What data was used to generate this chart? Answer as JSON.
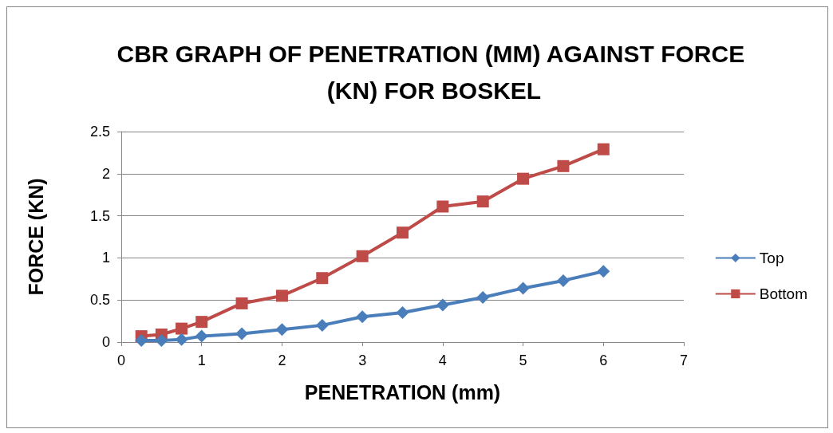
{
  "chart_data": {
    "type": "line",
    "title": "CBR GRAPH OF PENETRATION (MM) AGAINST FORCE (KN) FOR BOSKEL",
    "xlabel": "PENETRATION (mm)",
    "ylabel": "FORCE (KN)",
    "x": [
      0.25,
      0.5,
      0.75,
      1,
      1.5,
      2,
      2.5,
      3,
      3.5,
      4,
      4.5,
      5,
      5.5,
      6
    ],
    "series": [
      {
        "name": "Top",
        "color": "#4a7ebb",
        "marker": "diamond",
        "values": [
          0.02,
          0.02,
          0.03,
          0.07,
          0.1,
          0.15,
          0.2,
          0.3,
          0.35,
          0.44,
          0.53,
          0.64,
          0.73,
          0.84
        ]
      },
      {
        "name": "Bottom",
        "color": "#be4b48",
        "marker": "square",
        "values": [
          0.07,
          0.09,
          0.16,
          0.24,
          0.46,
          0.55,
          0.76,
          1.02,
          1.3,
          1.61,
          1.67,
          1.94,
          2.09,
          2.29
        ]
      }
    ],
    "xlim": [
      0,
      7
    ],
    "xticks": [
      0,
      1,
      2,
      3,
      4,
      5,
      6,
      7
    ],
    "ylim": [
      0,
      2.5
    ],
    "yticks": [
      0,
      0.5,
      1,
      1.5,
      2,
      2.5
    ],
    "grid": "y",
    "legend": "right"
  }
}
